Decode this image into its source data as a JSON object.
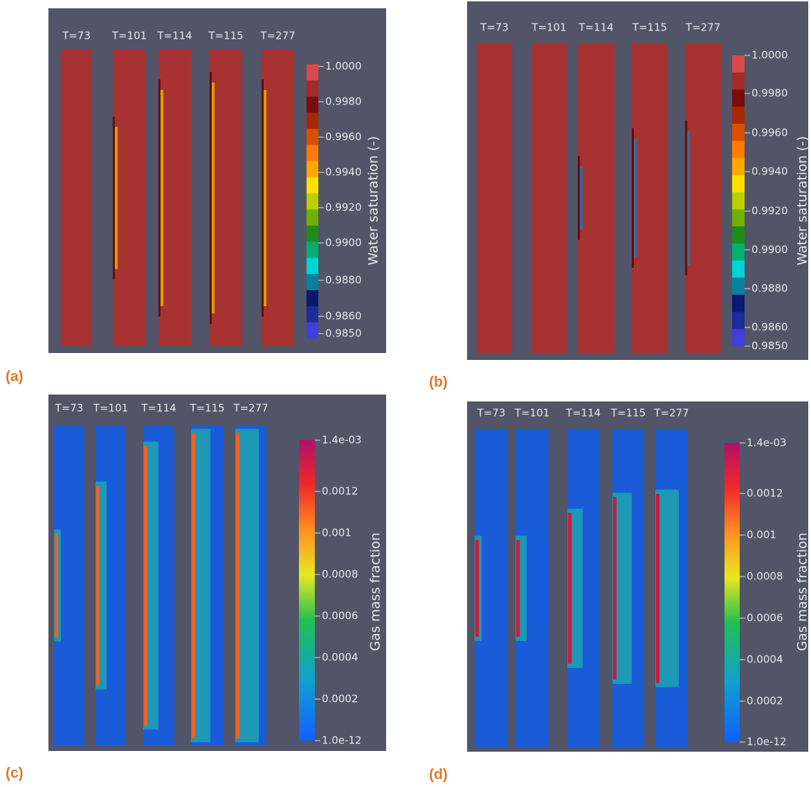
{
  "panels": [
    {
      "label": "(a)",
      "times": [
        "T=73",
        "T=101",
        "T=114",
        "T=115",
        "T=277"
      ],
      "colorbar": {
        "title": "Water saturation (-)",
        "ticks": [
          "1.0000",
          "0.9980",
          "0.9960",
          "0.9940",
          "0.9920",
          "0.9900",
          "0.9880",
          "0.9860",
          "0.9850"
        ]
      }
    },
    {
      "label": "(b)",
      "times": [
        "T=73",
        "T=101",
        "T=114",
        "T=115",
        "T=277"
      ],
      "colorbar": {
        "title": "Water saturation (-)",
        "ticks": [
          "1.0000",
          "0.9980",
          "0.9960",
          "0.9940",
          "0.9920",
          "0.9900",
          "0.9880",
          "0.9860",
          "0.9850"
        ]
      }
    },
    {
      "label": "(c)",
      "times": [
        "T=73",
        "T=101",
        "T=114",
        "T=115",
        "T=277"
      ],
      "colorbar": {
        "title": "Gas mass fraction",
        "ticks": [
          "1.4e-03",
          "0.0012",
          "0.001",
          "0.0008",
          "0.0006",
          "0.0004",
          "0.0002",
          "1.0e-12"
        ]
      }
    },
    {
      "label": "(d)",
      "times": [
        "T=73",
        "T=101",
        "T=114",
        "T=115",
        "T=277"
      ],
      "colorbar": {
        "title": "Gas mass fraction",
        "ticks": [
          "1.4e-03",
          "0.0012",
          "0.001",
          "0.0008",
          "0.0006",
          "0.0004",
          "0.0002",
          "1.0e-12"
        ]
      }
    }
  ]
}
